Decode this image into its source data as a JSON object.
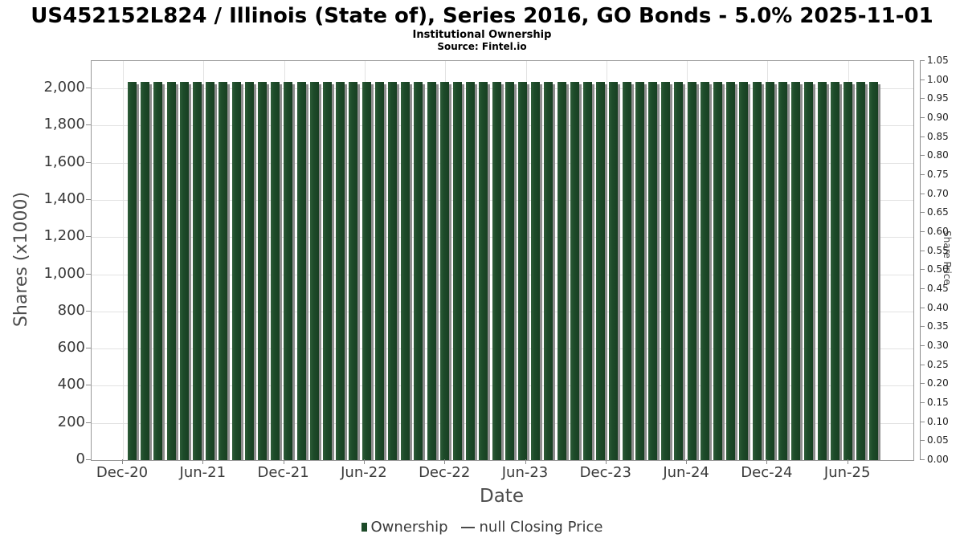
{
  "chart_data": {
    "type": "bar",
    "title": "US452152L824 / Illinois (State of), Series 2016, GO Bonds - 5.0% 2025-11-01",
    "subtitle": "Institutional Ownership",
    "source": "Source: Fintel.io",
    "xlabel": "Date",
    "ylabel_left": "Shares (x1000)",
    "ylabel_right": "Share Price",
    "x": [
      "Dec-20",
      "Jan-21",
      "Feb-21",
      "Mar-21",
      "Apr-21",
      "May-21",
      "Jun-21",
      "Jul-21",
      "Aug-21",
      "Sep-21",
      "Oct-21",
      "Nov-21",
      "Dec-21",
      "Jan-22",
      "Feb-22",
      "Mar-22",
      "Apr-22",
      "May-22",
      "Jun-22",
      "Jul-22",
      "Aug-22",
      "Sep-22",
      "Oct-22",
      "Nov-22",
      "Dec-22",
      "Jan-23",
      "Feb-23",
      "Mar-23",
      "Apr-23",
      "May-23",
      "Jun-23",
      "Jul-23",
      "Aug-23",
      "Sep-23",
      "Oct-23",
      "Nov-23",
      "Dec-23",
      "Jan-24",
      "Feb-24",
      "Mar-24",
      "Apr-24",
      "May-24",
      "Jun-24",
      "Jul-24",
      "Aug-24",
      "Sep-24",
      "Oct-24",
      "Nov-24",
      "Dec-24",
      "Jan-25",
      "Feb-25",
      "Mar-25",
      "Apr-25",
      "May-25",
      "Jun-25",
      "Jul-25",
      "Aug-25",
      "Sep-25"
    ],
    "values": [
      2035,
      2035,
      2035,
      2035,
      2035,
      2035,
      2035,
      2035,
      2035,
      2035,
      2035,
      2035,
      2035,
      2035,
      2035,
      2035,
      2035,
      2035,
      2035,
      2035,
      2035,
      2035,
      2035,
      2035,
      2035,
      2035,
      2035,
      2035,
      2035,
      2035,
      2035,
      2035,
      2035,
      2035,
      2035,
      2035,
      2035,
      2035,
      2035,
      2035,
      2035,
      2035,
      2035,
      2035,
      2035,
      2035,
      2035,
      2035,
      2035,
      2035,
      2035,
      2035,
      2035,
      2035,
      2035,
      2035,
      2035,
      2035
    ],
    "x_ticks": [
      "Dec-20",
      "Jun-21",
      "Dec-21",
      "Jun-22",
      "Dec-22",
      "Jun-23",
      "Dec-23",
      "Jun-24",
      "Dec-24",
      "Jun-25"
    ],
    "ylim": [
      0,
      2147
    ],
    "axes": {
      "y_left": {
        "labels": [
          "0",
          "200",
          "400",
          "600",
          "800",
          "1,000",
          "1,200",
          "1,400",
          "1,600",
          "1,800",
          "2,000"
        ],
        "step": 200
      },
      "y_right": {
        "labels": [
          "0.00",
          "0.05",
          "0.10",
          "0.15",
          "0.20",
          "0.25",
          "0.30",
          "0.35",
          "0.40",
          "0.45",
          "0.50",
          "0.55",
          "0.60",
          "0.65",
          "0.70",
          "0.75",
          "0.80",
          "0.85",
          "0.90",
          "0.95",
          "1.00",
          "1.05"
        ],
        "step": 0.05,
        "max": 1.05
      }
    },
    "grid": true,
    "legend": [
      {
        "label": "Ownership",
        "marker": "square",
        "color": "#1d4b29"
      },
      {
        "label": "null Closing Price",
        "marker": "line",
        "color": "#4a4a4a"
      }
    ],
    "colors": {
      "bar": "#1d4b29",
      "shadow": "#8d8d8d",
      "grid": "#e2e2e2",
      "axis": "#8a8a8a",
      "border": "#9a9a9a"
    }
  }
}
